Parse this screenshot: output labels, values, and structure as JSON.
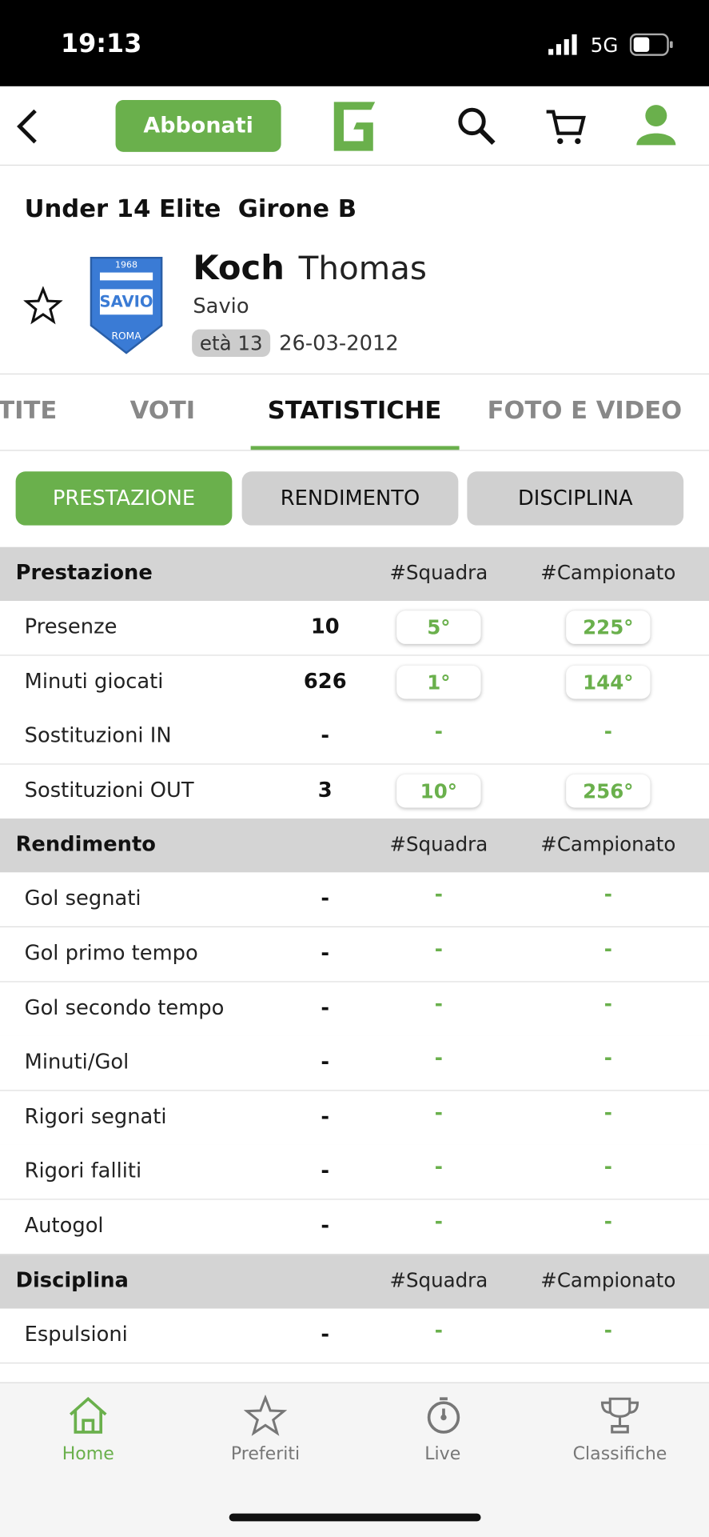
{
  "status_bar": {
    "time": "19:13",
    "network": "5G"
  },
  "header": {
    "subscribe": "Abbonati"
  },
  "competition": "Under 14 Elite  Girone B",
  "player": {
    "surname": "Koch",
    "name": "Thomas",
    "team": "Savio",
    "age": "età 13",
    "birth_date": "26-03-2012",
    "logo_year": "1968",
    "logo_city": "ROMA"
  },
  "tabs": [
    "TITE",
    "VOTI",
    "STATISTICHE",
    "FOTO E VIDEO"
  ],
  "subtabs": [
    "PRESTAZIONE",
    "RENDIMENTO",
    "DISCIPLINA"
  ],
  "sections": [
    {
      "title": "Prestazione",
      "col_team": "#Squadra",
      "col_league": "#Campionato",
      "rows": [
        [
          "Presenze",
          "10",
          "5°",
          "225°"
        ],
        [
          "Minuti giocati",
          "626",
          "1°",
          "144°"
        ],
        [
          "Sostituzioni IN",
          "-",
          "-",
          "-"
        ],
        [
          "Sostituzioni OUT",
          "3",
          "10°",
          "256°"
        ]
      ]
    },
    {
      "title": "Rendimento",
      "col_team": "#Squadra",
      "col_league": "#Campionato",
      "rows": [
        [
          "Gol segnati",
          "-",
          "-",
          "-"
        ],
        [
          "Gol primo tempo",
          "-",
          "-",
          "-"
        ],
        [
          "Gol secondo tempo",
          "-",
          "-",
          "-"
        ],
        [
          "Minuti/Gol",
          "-",
          "-",
          "-"
        ],
        [
          "Rigori segnati",
          "-",
          "-",
          "-"
        ],
        [
          "Rigori falliti",
          "-",
          "-",
          "-"
        ],
        [
          "Autogol",
          "-",
          "-",
          "-"
        ]
      ]
    },
    {
      "title": "Disciplina",
      "col_team": "#Squadra",
      "col_league": "#Campionato",
      "rows": [
        [
          "Espulsioni",
          "-",
          "-",
          "-"
        ]
      ]
    }
  ],
  "bottom_nav": [
    "Home",
    "Preferiti",
    "Live",
    "Classifiche"
  ]
}
